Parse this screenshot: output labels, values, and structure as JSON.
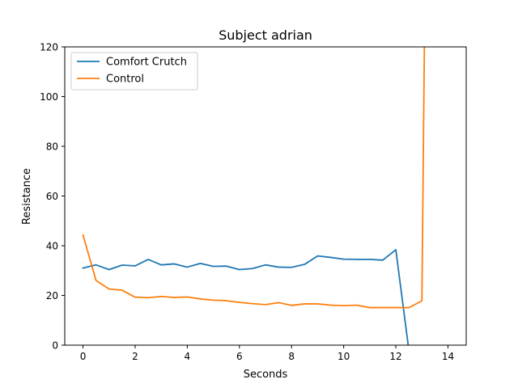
{
  "chart_data": {
    "type": "line",
    "title": "Subject adrian",
    "xlabel": "Seconds",
    "ylabel": "Resistance",
    "xlim": [
      -0.7,
      14.7
    ],
    "ylim": [
      0,
      120
    ],
    "xticks": [
      0,
      2,
      4,
      6,
      8,
      10,
      12,
      14
    ],
    "yticks": [
      0,
      20,
      40,
      60,
      80,
      100,
      120
    ],
    "grid": false,
    "legend_position": "top-left",
    "series": [
      {
        "name": "Comfort Crutch",
        "color": "#1f77b4",
        "x": [
          0,
          0.5,
          1,
          1.5,
          2,
          2.5,
          3,
          3.5,
          4,
          4.5,
          5,
          5.5,
          6,
          6.5,
          7,
          7.5,
          8,
          8.5,
          9,
          9.5,
          10,
          10.5,
          11,
          11.5,
          12,
          12.5
        ],
        "y": [
          31,
          32.3,
          30.4,
          32.2,
          31.9,
          34.5,
          32.3,
          32.7,
          31.4,
          32.9,
          31.7,
          31.8,
          30.4,
          30.8,
          32.3,
          31.4,
          31.3,
          32.5,
          35.9,
          35.3,
          34.6,
          34.5,
          34.5,
          34.2,
          38.4,
          -2
        ]
      },
      {
        "name": "Control",
        "color": "#ff7f0e",
        "x": [
          0,
          0.5,
          1,
          1.5,
          2,
          2.5,
          3,
          3.5,
          4,
          4.5,
          5,
          5.5,
          6,
          6.5,
          7,
          7.5,
          8,
          8.5,
          9,
          9.5,
          10,
          10.5,
          11,
          11.5,
          12,
          12.5,
          13,
          13.1
        ],
        "y": [
          44.3,
          26,
          22.6,
          22.1,
          19.3,
          19.1,
          19.6,
          19.2,
          19.4,
          18.6,
          18.1,
          17.9,
          17.2,
          16.7,
          16.3,
          17.1,
          16,
          16.6,
          16.6,
          16.1,
          15.9,
          16.1,
          15.1,
          15.1,
          15.1,
          15.1,
          17.8,
          125
        ]
      }
    ]
  }
}
